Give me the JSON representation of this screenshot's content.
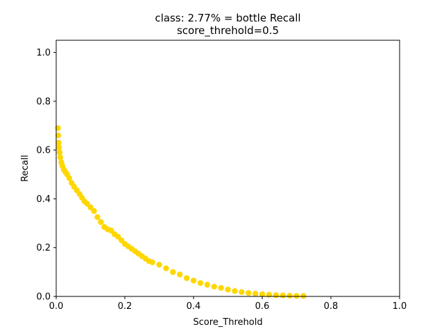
{
  "chart_data": {
    "type": "scatter",
    "title": "class: 2.77% = bottle Recall",
    "subtitle": "score_threhold=0.5",
    "xlabel": "Score_Threhold",
    "ylabel": "Recall",
    "xlim": [
      0.0,
      1.0
    ],
    "ylim": [
      0.0,
      1.05
    ],
    "xticks": [
      "0.0",
      "0.2",
      "0.4",
      "0.6",
      "0.8",
      "1.0"
    ],
    "yticks": [
      "0.0",
      "0.2",
      "0.4",
      "0.6",
      "0.8",
      "1.0"
    ],
    "grid": false,
    "color": "#FFD700",
    "points": [
      [
        0.005,
        0.69
      ],
      [
        0.006,
        0.66
      ],
      [
        0.007,
        0.63
      ],
      [
        0.008,
        0.61
      ],
      [
        0.01,
        0.59
      ],
      [
        0.012,
        0.57
      ],
      [
        0.015,
        0.55
      ],
      [
        0.018,
        0.535
      ],
      [
        0.022,
        0.52
      ],
      [
        0.027,
        0.51
      ],
      [
        0.032,
        0.5
      ],
      [
        0.038,
        0.485
      ],
      [
        0.045,
        0.465
      ],
      [
        0.052,
        0.45
      ],
      [
        0.06,
        0.435
      ],
      [
        0.068,
        0.42
      ],
      [
        0.075,
        0.405
      ],
      [
        0.082,
        0.39
      ],
      [
        0.09,
        0.38
      ],
      [
        0.1,
        0.365
      ],
      [
        0.11,
        0.35
      ],
      [
        0.12,
        0.325
      ],
      [
        0.13,
        0.305
      ],
      [
        0.14,
        0.285
      ],
      [
        0.15,
        0.275
      ],
      [
        0.16,
        0.27
      ],
      [
        0.17,
        0.255
      ],
      [
        0.18,
        0.245
      ],
      [
        0.19,
        0.23
      ],
      [
        0.2,
        0.215
      ],
      [
        0.21,
        0.205
      ],
      [
        0.22,
        0.195
      ],
      [
        0.23,
        0.185
      ],
      [
        0.24,
        0.175
      ],
      [
        0.25,
        0.165
      ],
      [
        0.26,
        0.155
      ],
      [
        0.27,
        0.145
      ],
      [
        0.28,
        0.14
      ],
      [
        0.3,
        0.13
      ],
      [
        0.32,
        0.115
      ],
      [
        0.34,
        0.1
      ],
      [
        0.36,
        0.09
      ],
      [
        0.38,
        0.075
      ],
      [
        0.4,
        0.065
      ],
      [
        0.42,
        0.055
      ],
      [
        0.44,
        0.048
      ],
      [
        0.46,
        0.04
      ],
      [
        0.48,
        0.035
      ],
      [
        0.5,
        0.028
      ],
      [
        0.52,
        0.022
      ],
      [
        0.54,
        0.018
      ],
      [
        0.56,
        0.014
      ],
      [
        0.58,
        0.011
      ],
      [
        0.6,
        0.009
      ],
      [
        0.62,
        0.007
      ],
      [
        0.64,
        0.005
      ],
      [
        0.66,
        0.004
      ],
      [
        0.68,
        0.003
      ],
      [
        0.7,
        0.002
      ],
      [
        0.72,
        0.002
      ]
    ]
  }
}
